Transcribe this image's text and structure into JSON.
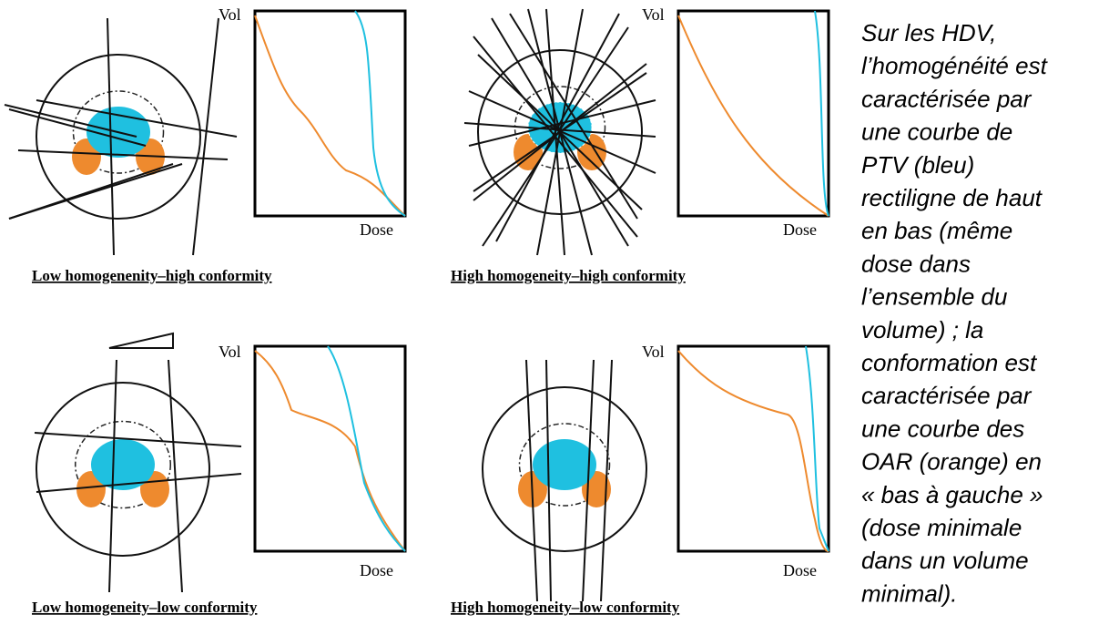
{
  "panels": [
    {
      "caption": "Low homogenenity–high conformity",
      "y_label": "Vol",
      "x_label": "Dose"
    },
    {
      "caption": "High homogeneity–high conformity",
      "y_label": "Vol",
      "x_label": "Dose"
    },
    {
      "caption": "Low homogeneity–low conformity",
      "y_label": "Vol",
      "x_label": "Dose"
    },
    {
      "caption": "High homogeneity–low conformity",
      "y_label": "Vol",
      "x_label": "Dose"
    }
  ],
  "description": {
    "lines": [
      "Sur les HDV,",
      "l’homogénéité est",
      "caractérisée par",
      "une courbe de",
      "PTV (bleu)",
      "rectiligne de haut",
      "en bas (même",
      "dose dans",
      "l’ensemble du",
      "volume) ; la",
      "conformation est",
      "caractérisée par",
      "une courbe des",
      "OAR (orange) en",
      "« bas à gauche »",
      "(dose minimale",
      "dans un volume",
      "minimal)."
    ]
  }
}
